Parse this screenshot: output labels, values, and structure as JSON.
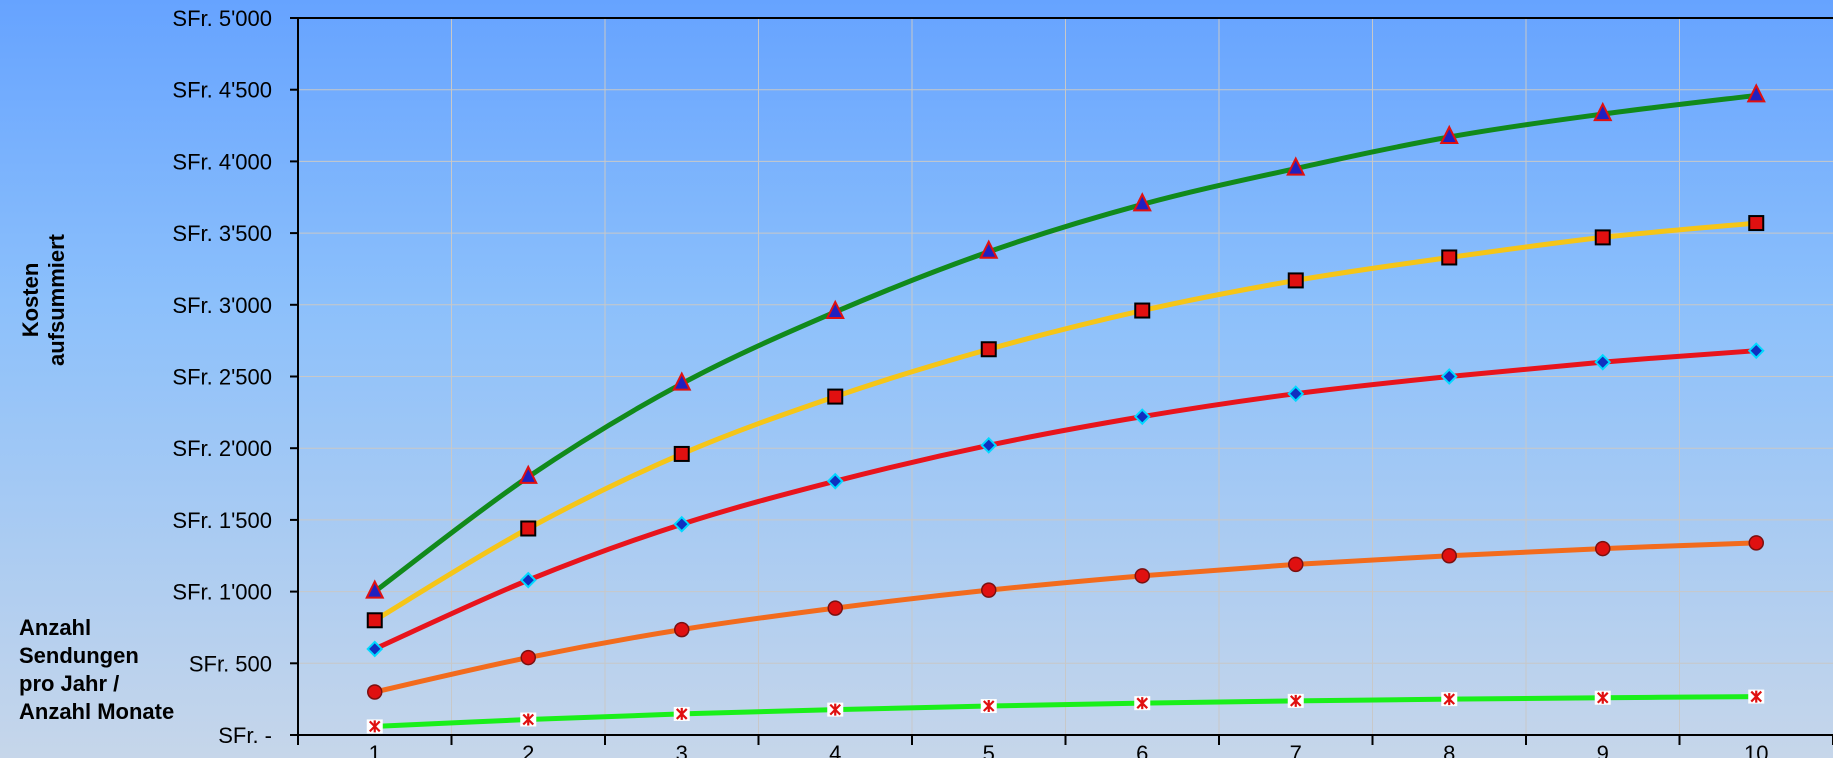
{
  "chart_data": {
    "type": "line",
    "ylabel": "Kosten\naufsummiert",
    "xlabel": "Anzahl\nSendungen\npro Jahr /\nAnzahl Monate",
    "categories": [
      "1",
      "2",
      "3",
      "4",
      "5",
      "6",
      "7",
      "8",
      "9",
      "10"
    ],
    "ylim": [
      0,
      5000
    ],
    "y_ticks": [
      0,
      500,
      1000,
      1500,
      2000,
      2500,
      3000,
      3500,
      4000,
      4500,
      5000
    ],
    "y_tick_labels": [
      "SFr. -",
      "SFr. 500",
      "SFr. 1'000",
      "SFr. 1'500",
      "SFr. 2'000",
      "SFr. 2'500",
      "SFr. 3'000",
      "SFr. 3'500",
      "SFr. 4'000",
      "SFr. 4'500",
      "SFr. 5'000"
    ],
    "grid": true,
    "series": [
      {
        "color": "#118a1b",
        "marker": "triangle",
        "values": [
          1000,
          1800,
          2450,
          2950,
          3370,
          3700,
          3950,
          4170,
          4330,
          4460
        ]
      },
      {
        "color": "#f5c518",
        "marker": "square",
        "values": [
          800,
          1440,
          1960,
          2360,
          2690,
          2960,
          3170,
          3330,
          3470,
          3570
        ]
      },
      {
        "color": "#e8141c",
        "marker": "diamond",
        "values": [
          600,
          1080,
          1470,
          1770,
          2020,
          2220,
          2380,
          2500,
          2600,
          2680
        ]
      },
      {
        "color": "#f26b1d",
        "marker": "circle",
        "values": [
          300,
          540,
          735,
          885,
          1010,
          1110,
          1190,
          1250,
          1300,
          1340
        ]
      },
      {
        "color": "#1aef1a",
        "marker": "star",
        "values": [
          60,
          108,
          147,
          177,
          202,
          222,
          238,
          250,
          260,
          268
        ]
      }
    ]
  }
}
